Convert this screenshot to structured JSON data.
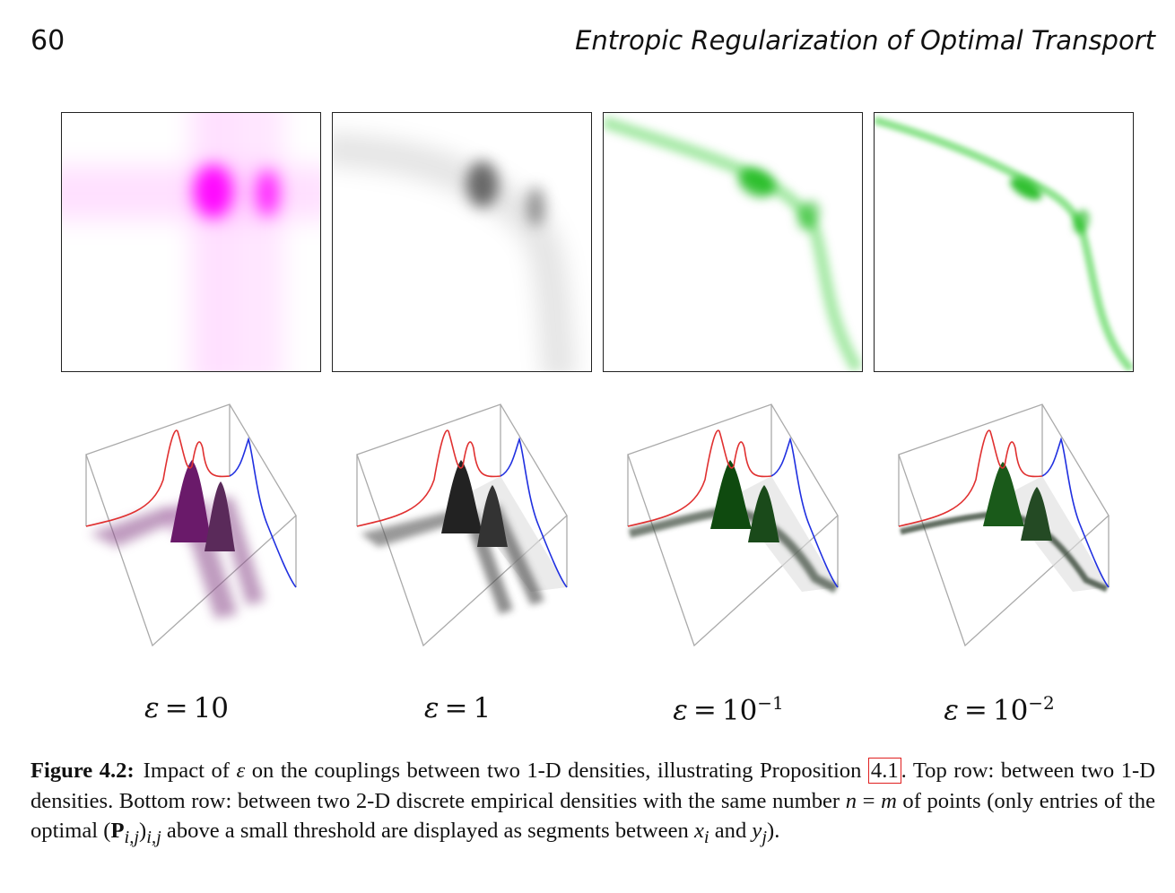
{
  "header": {
    "page_number": "60",
    "running_title": "Entropic Regularization of Optimal Transport"
  },
  "figure": {
    "panels": [
      {
        "epsilon_base": "10",
        "epsilon_exp": "",
        "color": "#ff00ff"
      },
      {
        "epsilon_base": "1",
        "epsilon_exp": "",
        "color": "#1a1a1a"
      },
      {
        "epsilon_base": "10",
        "epsilon_exp": "−1",
        "color": "#00b000"
      },
      {
        "epsilon_base": "10",
        "epsilon_exp": "−2",
        "color": "#00b000"
      }
    ],
    "epsilon_symbol": "ε",
    "equals_sign": "=",
    "marginal_colors": {
      "source": "#e03030",
      "target": "#2030e0"
    }
  },
  "caption": {
    "label": "Figure 4.2:",
    "text1": "Impact of ",
    "text2": " on the couplings between two 1-D densities, illustrating Proposition ",
    "ref": "4.1",
    "text3": ". Top row: between two 1-D densities. Bottom row: between two 2-D discrete empirical densities with the same number ",
    "n": "n",
    "eq": " = ",
    "m": "m",
    "text4": " of points (only entries of the optimal (",
    "P": "P",
    "sub_ij": "i,j",
    "text5": ")",
    "text6": " above a small threshold are displayed as segments between ",
    "x": "x",
    "sub_i": "i",
    "and": " and ",
    "y": "y",
    "sub_j": "j",
    "text7": ")."
  }
}
